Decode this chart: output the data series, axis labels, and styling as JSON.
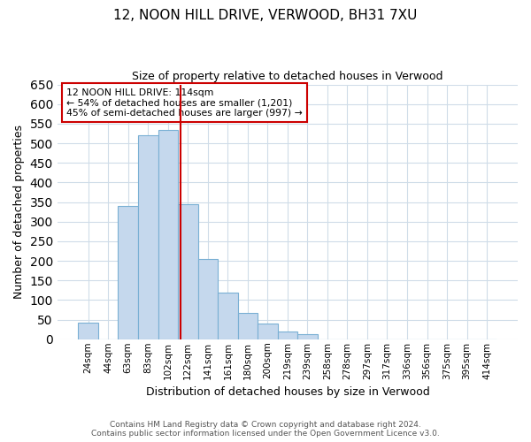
{
  "title_line1": "12, NOON HILL DRIVE, VERWOOD, BH31 7XU",
  "title_line2": "Size of property relative to detached houses in Verwood",
  "xlabel": "Distribution of detached houses by size in Verwood",
  "ylabel": "Number of detached properties",
  "bar_labels": [
    "24sqm",
    "44sqm",
    "63sqm",
    "83sqm",
    "102sqm",
    "122sqm",
    "141sqm",
    "161sqm",
    "180sqm",
    "200sqm",
    "219sqm",
    "239sqm",
    "258sqm",
    "278sqm",
    "297sqm",
    "317sqm",
    "336sqm",
    "356sqm",
    "375sqm",
    "395sqm",
    "414sqm"
  ],
  "bar_heights": [
    42,
    0,
    340,
    520,
    535,
    345,
    205,
    120,
    67,
    40,
    20,
    13,
    0,
    0,
    0,
    0,
    0,
    0,
    0,
    0,
    0
  ],
  "bar_color": "#c5d8ed",
  "bar_edge_color": "#7ab0d4",
  "line_color": "#cc0000",
  "annotation_box_color": "#cc0000",
  "annotation_line1": "12 NOON HILL DRIVE: 114sqm",
  "annotation_line2": "← 54% of detached houses are smaller (1,201)",
  "annotation_line3": "45% of semi-detached houses are larger (997) →",
  "ylim": [
    0,
    650
  ],
  "yticks": [
    0,
    50,
    100,
    150,
    200,
    250,
    300,
    350,
    400,
    450,
    500,
    550,
    600,
    650
  ],
  "footer_line1": "Contains HM Land Registry data © Crown copyright and database right 2024.",
  "footer_line2": "Contains public sector information licensed under the Open Government Licence v3.0.",
  "background_color": "#ffffff",
  "grid_color": "#cfdce8"
}
